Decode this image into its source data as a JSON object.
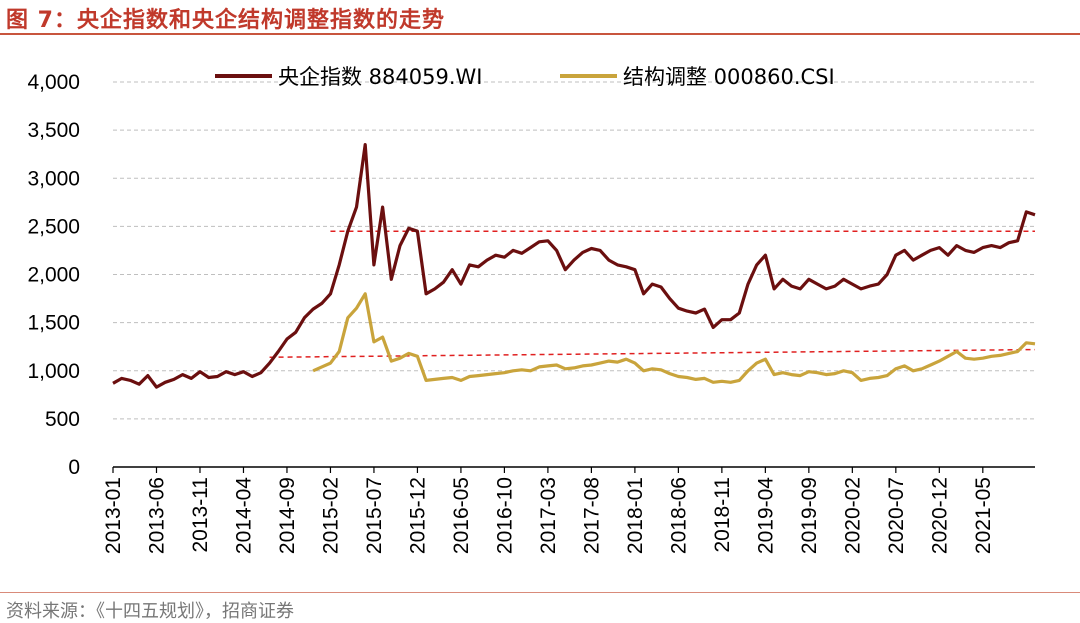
{
  "header": {
    "title": "图 7：央企指数和央企结构调整指数的走势"
  },
  "footer": {
    "source": "资料来源：《十四五规划》，招商证券"
  },
  "colors": {
    "title": "#c0392b",
    "series_central": "#6b0f0f",
    "series_structural": "#c9a43c",
    "reference_line": "#e02020",
    "grid": "#bfbfbf"
  },
  "chart_data": {
    "type": "line",
    "ylim": [
      0,
      4000
    ],
    "yticks": [
      "0",
      "500",
      "1,000",
      "1,500",
      "2,000",
      "2,500",
      "3,000",
      "3,500",
      "4,000"
    ],
    "ytick_values": [
      0,
      500,
      1000,
      1500,
      2000,
      2500,
      3000,
      3500,
      4000
    ],
    "xlim": [
      "2013-01",
      "2021-11"
    ],
    "xticks": [
      "2013-01",
      "2013-06",
      "2013-11",
      "2014-04",
      "2014-09",
      "2015-02",
      "2015-07",
      "2015-12",
      "2016-05",
      "2016-10",
      "2017-03",
      "2017-08",
      "2018-01",
      "2018-06",
      "2018-11",
      "2019-04",
      "2019-09",
      "2020-02",
      "2020-07",
      "2020-12",
      "2021-05"
    ],
    "grid": true,
    "legend_position": "top",
    "series": [
      {
        "name": "央企指数 884059.WI",
        "points": [
          [
            "2013-01",
            870
          ],
          [
            "2013-02",
            920
          ],
          [
            "2013-03",
            900
          ],
          [
            "2013-04",
            860
          ],
          [
            "2013-05",
            950
          ],
          [
            "2013-06",
            830
          ],
          [
            "2013-07",
            880
          ],
          [
            "2013-08",
            910
          ],
          [
            "2013-09",
            960
          ],
          [
            "2013-10",
            920
          ],
          [
            "2013-11",
            990
          ],
          [
            "2013-12",
            930
          ],
          [
            "2014-01",
            940
          ],
          [
            "2014-02",
            990
          ],
          [
            "2014-03",
            960
          ],
          [
            "2014-04",
            990
          ],
          [
            "2014-05",
            940
          ],
          [
            "2014-06",
            980
          ],
          [
            "2014-07",
            1080
          ],
          [
            "2014-08",
            1200
          ],
          [
            "2014-09",
            1330
          ],
          [
            "2014-10",
            1400
          ],
          [
            "2014-11",
            1550
          ],
          [
            "2014-12",
            1640
          ],
          [
            "2015-01",
            1700
          ],
          [
            "2015-02",
            1800
          ],
          [
            "2015-03",
            2100
          ],
          [
            "2015-04",
            2450
          ],
          [
            "2015-05",
            2700
          ],
          [
            "2015-06",
            3350
          ],
          [
            "2015-07",
            2100
          ],
          [
            "2015-08",
            2700
          ],
          [
            "2015-09",
            1950
          ],
          [
            "2015-10",
            2300
          ],
          [
            "2015-11",
            2480
          ],
          [
            "2015-12",
            2450
          ],
          [
            "2016-01",
            1800
          ],
          [
            "2016-02",
            1850
          ],
          [
            "2016-03",
            1920
          ],
          [
            "2016-04",
            2050
          ],
          [
            "2016-05",
            1900
          ],
          [
            "2016-06",
            2100
          ],
          [
            "2016-07",
            2080
          ],
          [
            "2016-08",
            2150
          ],
          [
            "2016-09",
            2200
          ],
          [
            "2016-10",
            2180
          ],
          [
            "2016-11",
            2250
          ],
          [
            "2016-12",
            2220
          ],
          [
            "2017-01",
            2280
          ],
          [
            "2017-02",
            2340
          ],
          [
            "2017-03",
            2350
          ],
          [
            "2017-04",
            2250
          ],
          [
            "2017-05",
            2050
          ],
          [
            "2017-06",
            2150
          ],
          [
            "2017-07",
            2230
          ],
          [
            "2017-08",
            2270
          ],
          [
            "2017-09",
            2250
          ],
          [
            "2017-10",
            2150
          ],
          [
            "2017-11",
            2100
          ],
          [
            "2017-12",
            2080
          ],
          [
            "2018-01",
            2050
          ],
          [
            "2018-02",
            1800
          ],
          [
            "2018-03",
            1900
          ],
          [
            "2018-04",
            1870
          ],
          [
            "2018-05",
            1750
          ],
          [
            "2018-06",
            1650
          ],
          [
            "2018-07",
            1620
          ],
          [
            "2018-08",
            1600
          ],
          [
            "2018-09",
            1640
          ],
          [
            "2018-10",
            1450
          ],
          [
            "2018-11",
            1530
          ],
          [
            "2018-12",
            1530
          ],
          [
            "2019-01",
            1600
          ],
          [
            "2019-02",
            1900
          ],
          [
            "2019-03",
            2100
          ],
          [
            "2019-04",
            2200
          ],
          [
            "2019-05",
            1850
          ],
          [
            "2019-06",
            1950
          ],
          [
            "2019-07",
            1880
          ],
          [
            "2019-08",
            1850
          ],
          [
            "2019-09",
            1950
          ],
          [
            "2019-10",
            1900
          ],
          [
            "2019-11",
            1850
          ],
          [
            "2019-12",
            1880
          ],
          [
            "2020-01",
            1950
          ],
          [
            "2020-02",
            1900
          ],
          [
            "2020-03",
            1850
          ],
          [
            "2020-04",
            1880
          ],
          [
            "2020-05",
            1900
          ],
          [
            "2020-06",
            2000
          ],
          [
            "2020-07",
            2200
          ],
          [
            "2020-08",
            2250
          ],
          [
            "2020-09",
            2150
          ],
          [
            "2020-10",
            2200
          ],
          [
            "2020-11",
            2250
          ],
          [
            "2020-12",
            2280
          ],
          [
            "2021-01",
            2200
          ],
          [
            "2021-02",
            2300
          ],
          [
            "2021-03",
            2250
          ],
          [
            "2021-04",
            2230
          ],
          [
            "2021-05",
            2280
          ],
          [
            "2021-06",
            2300
          ],
          [
            "2021-07",
            2280
          ],
          [
            "2021-08",
            2330
          ],
          [
            "2021-09",
            2350
          ],
          [
            "2021-10",
            2650
          ],
          [
            "2021-11",
            2620
          ]
        ]
      },
      {
        "name": "结构调整 000860.CSI",
        "points": [
          [
            "2014-12",
            1000
          ],
          [
            "2015-01",
            1040
          ],
          [
            "2015-02",
            1080
          ],
          [
            "2015-03",
            1200
          ],
          [
            "2015-04",
            1550
          ],
          [
            "2015-05",
            1650
          ],
          [
            "2015-06",
            1800
          ],
          [
            "2015-07",
            1300
          ],
          [
            "2015-08",
            1350
          ],
          [
            "2015-09",
            1100
          ],
          [
            "2015-10",
            1130
          ],
          [
            "2015-11",
            1180
          ],
          [
            "2015-12",
            1150
          ],
          [
            "2016-01",
            900
          ],
          [
            "2016-02",
            910
          ],
          [
            "2016-03",
            920
          ],
          [
            "2016-04",
            930
          ],
          [
            "2016-05",
            900
          ],
          [
            "2016-06",
            940
          ],
          [
            "2016-07",
            950
          ],
          [
            "2016-08",
            960
          ],
          [
            "2016-09",
            970
          ],
          [
            "2016-10",
            980
          ],
          [
            "2016-11",
            1000
          ],
          [
            "2016-12",
            1010
          ],
          [
            "2017-01",
            1000
          ],
          [
            "2017-02",
            1040
          ],
          [
            "2017-03",
            1050
          ],
          [
            "2017-04",
            1060
          ],
          [
            "2017-05",
            1020
          ],
          [
            "2017-06",
            1030
          ],
          [
            "2017-07",
            1050
          ],
          [
            "2017-08",
            1060
          ],
          [
            "2017-09",
            1080
          ],
          [
            "2017-10",
            1100
          ],
          [
            "2017-11",
            1090
          ],
          [
            "2017-12",
            1120
          ],
          [
            "2018-01",
            1080
          ],
          [
            "2018-02",
            1000
          ],
          [
            "2018-03",
            1020
          ],
          [
            "2018-04",
            1010
          ],
          [
            "2018-05",
            970
          ],
          [
            "2018-06",
            940
          ],
          [
            "2018-07",
            930
          ],
          [
            "2018-08",
            910
          ],
          [
            "2018-09",
            920
          ],
          [
            "2018-10",
            880
          ],
          [
            "2018-11",
            890
          ],
          [
            "2018-12",
            880
          ],
          [
            "2019-01",
            900
          ],
          [
            "2019-02",
            1000
          ],
          [
            "2019-03",
            1080
          ],
          [
            "2019-04",
            1120
          ],
          [
            "2019-05",
            960
          ],
          [
            "2019-06",
            980
          ],
          [
            "2019-07",
            960
          ],
          [
            "2019-08",
            950
          ],
          [
            "2019-09",
            990
          ],
          [
            "2019-10",
            980
          ],
          [
            "2019-11",
            960
          ],
          [
            "2019-12",
            970
          ],
          [
            "2020-01",
            1000
          ],
          [
            "2020-02",
            980
          ],
          [
            "2020-03",
            900
          ],
          [
            "2020-04",
            920
          ],
          [
            "2020-05",
            930
          ],
          [
            "2020-06",
            950
          ],
          [
            "2020-07",
            1020
          ],
          [
            "2020-08",
            1050
          ],
          [
            "2020-09",
            1000
          ],
          [
            "2020-10",
            1020
          ],
          [
            "2020-11",
            1060
          ],
          [
            "2020-12",
            1100
          ],
          [
            "2021-01",
            1150
          ],
          [
            "2021-02",
            1200
          ],
          [
            "2021-03",
            1130
          ],
          [
            "2021-04",
            1120
          ],
          [
            "2021-05",
            1130
          ],
          [
            "2021-06",
            1150
          ],
          [
            "2021-07",
            1160
          ],
          [
            "2021-08",
            1180
          ],
          [
            "2021-09",
            1200
          ],
          [
            "2021-10",
            1290
          ],
          [
            "2021-11",
            1280
          ]
        ]
      }
    ],
    "reference_lines": [
      {
        "from": "2015-02",
        "to": "2021-11",
        "y": 2450
      },
      {
        "from": "2014-07",
        "to": "2021-11",
        "y_start": 1140,
        "y_end": 1220
      }
    ]
  }
}
